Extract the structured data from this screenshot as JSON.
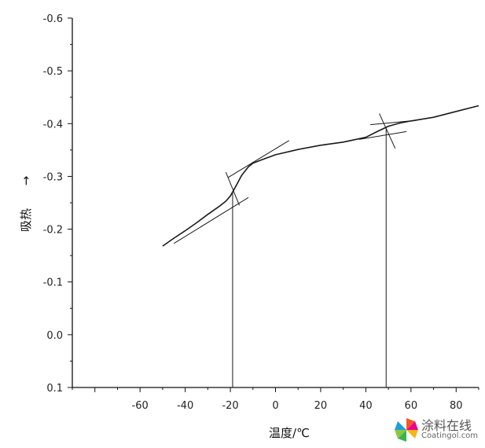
{
  "chart_data": {
    "type": "line",
    "title": "",
    "xlabel": "温度/℃",
    "ylabel": "吸热",
    "ylabel_arrow": "→",
    "xlim": [
      -90,
      90
    ],
    "ylim": [
      0.1,
      -0.6
    ],
    "x_ticks": [
      -80,
      -60,
      -40,
      -20,
      0,
      20,
      40,
      60,
      80
    ],
    "x_tick_labels": [
      "",
      "-60",
      "-40",
      "-20",
      "0",
      "20",
      "40",
      "60",
      "80"
    ],
    "y_ticks": [
      -0.6,
      -0.5,
      -0.4,
      -0.3,
      -0.2,
      -0.1,
      0.0,
      0.1
    ],
    "y_tick_labels": [
      "-0.6",
      "-0.5",
      "-0.4",
      "-0.3",
      "-0.2",
      "-0.1",
      "0.0",
      "0.1"
    ],
    "grid": false,
    "legend": "none",
    "series": [
      {
        "x": [
          -50,
          -45,
          -40,
          -35,
          -30,
          -25,
          -22,
          -20,
          -18,
          -15,
          -12,
          -10,
          -7,
          0,
          10,
          20,
          30,
          40,
          45,
          50,
          55,
          60,
          70,
          80,
          90
        ],
        "y": [
          -0.168,
          -0.183,
          -0.197,
          -0.212,
          -0.228,
          -0.243,
          -0.253,
          -0.263,
          -0.278,
          -0.302,
          -0.318,
          -0.325,
          -0.33,
          -0.341,
          -0.351,
          -0.359,
          -0.365,
          -0.374,
          -0.385,
          -0.395,
          -0.401,
          -0.405,
          -0.412,
          -0.423,
          -0.434
        ]
      }
    ],
    "tangent_lines": [
      {
        "x": [
          -45,
          -12
        ],
        "y": [
          -0.173,
          -0.26
        ]
      },
      {
        "x": [
          -21,
          6
        ],
        "y": [
          -0.298,
          -0.368
        ]
      },
      {
        "x": [
          -22,
          -16
        ],
        "y": [
          -0.308,
          -0.245
        ]
      },
      {
        "x": [
          37,
          58
        ],
        "y": [
          -0.37,
          -0.385
        ]
      },
      {
        "x": [
          42,
          62
        ],
        "y": [
          -0.398,
          -0.406
        ]
      },
      {
        "x": [
          46,
          53
        ],
        "y": [
          -0.419,
          -0.353
        ]
      }
    ],
    "reference_lines_x": [
      -19,
      49
    ],
    "color": "#1a1a1a"
  },
  "watermark": {
    "title": "涂料在线",
    "subtitle": "Coatingol.com"
  }
}
